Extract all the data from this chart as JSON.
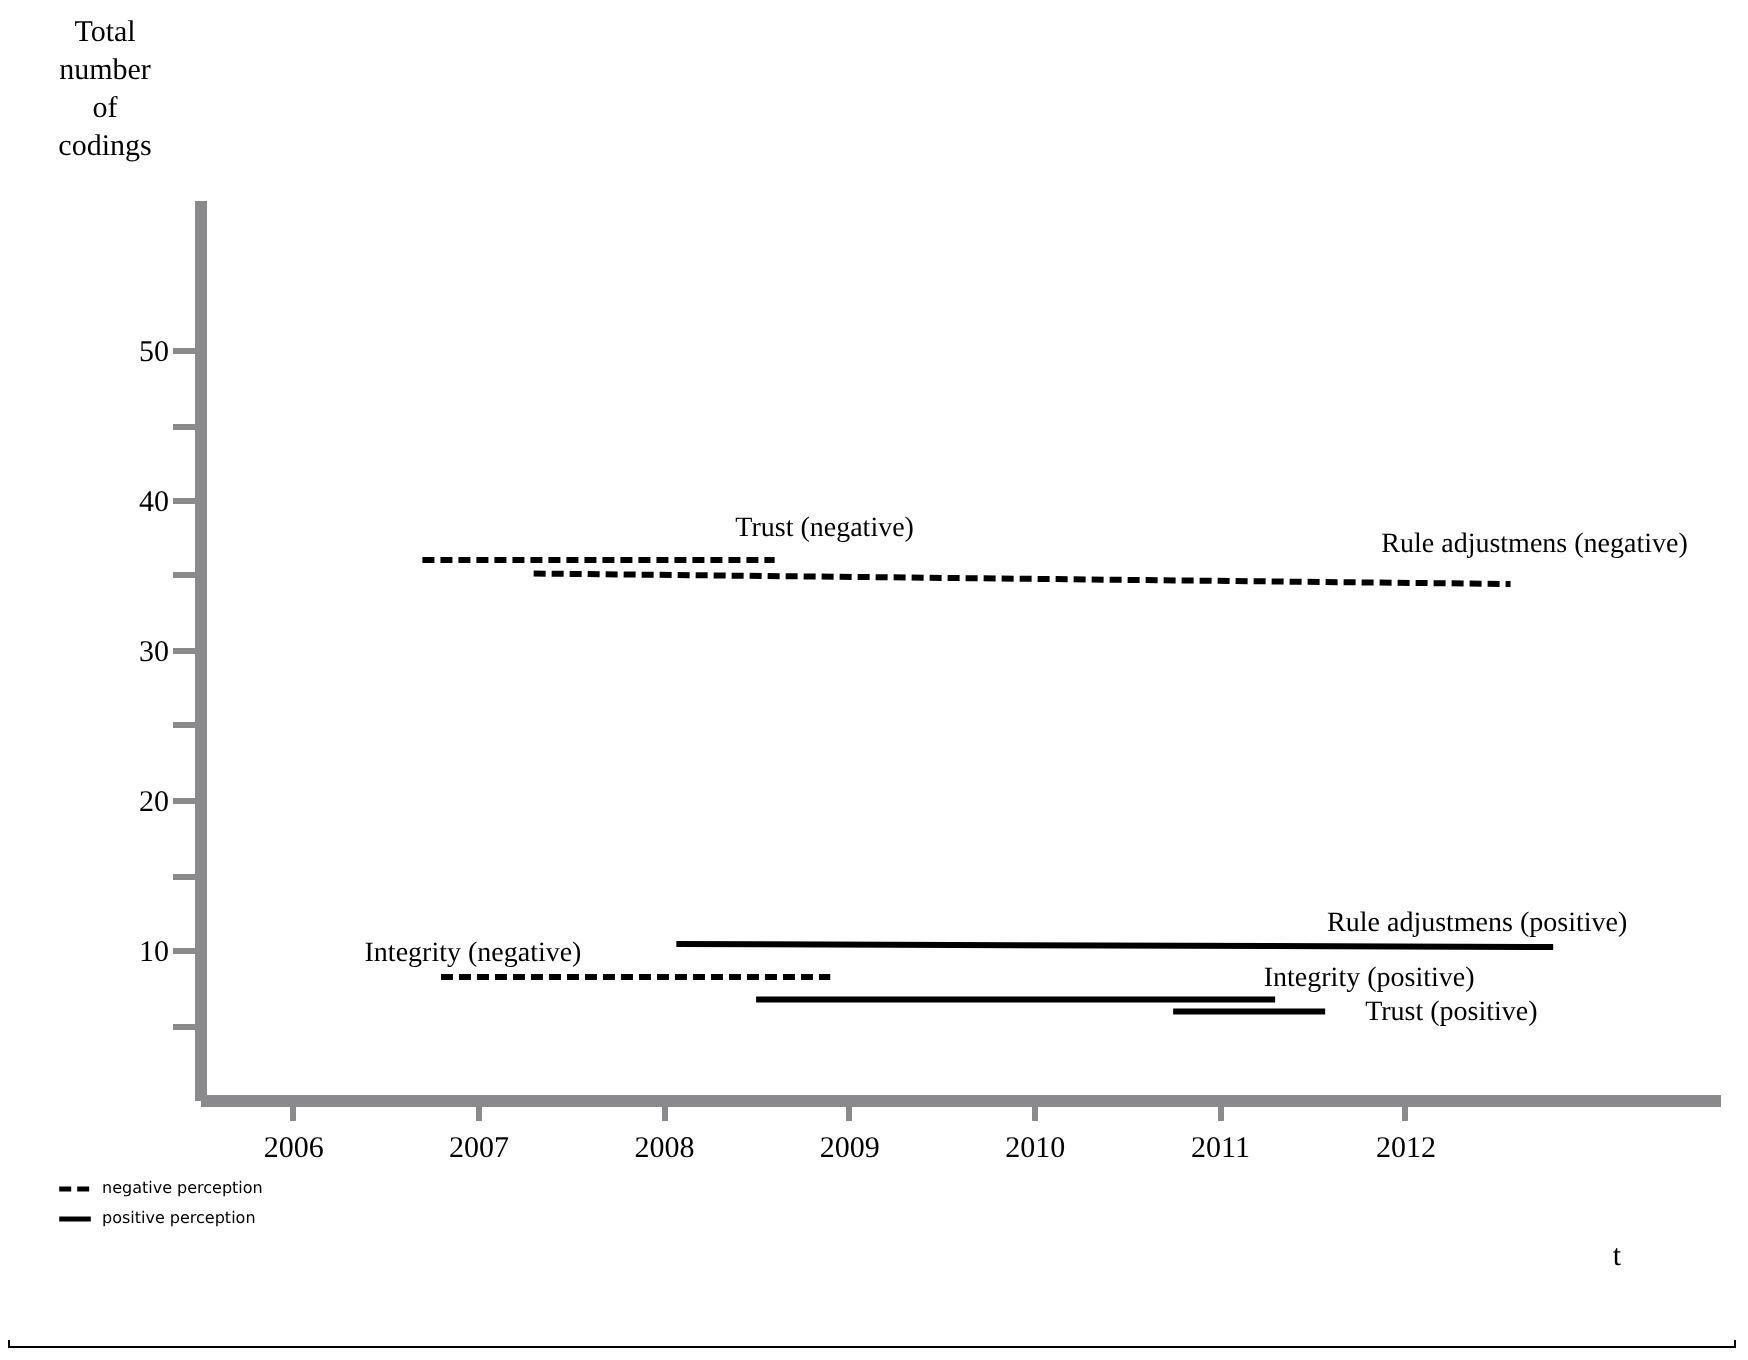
{
  "chart_data": {
    "type": "line",
    "ylabel": "Total number of codings",
    "xlabel": "t",
    "xlim": [
      2005.5,
      2013.7
    ],
    "xticks": [
      2006,
      2007,
      2008,
      2009,
      2010,
      2011,
      2012
    ],
    "ylim": [
      0,
      60
    ],
    "yticks": [
      {
        "value": 5,
        "label": null
      },
      10,
      {
        "value": 15,
        "label": null
      },
      20,
      {
        "value": 25,
        "label": null
      },
      30,
      {
        "value": 35,
        "label": null
      },
      40,
      {
        "value": 45,
        "label": null
      },
      50
    ],
    "grid": false,
    "legend": "bottom left",
    "marker": "none",
    "annotations": [
      "negative perception",
      "positive perception"
    ],
    "series": [
      {
        "name": "Trust (negative)",
        "color": "#000000",
        "line_style": "dashed",
        "x": [
          2006.7,
          2008.6
        ],
        "values": [
          36,
          36
        ]
      },
      {
        "name": "Rule adjustmens (negative)",
        "color": "#000000",
        "line_style": "dashed",
        "x": [
          2007.3,
          2012.57
        ],
        "values": [
          35.1,
          34.4
        ]
      },
      {
        "name": "Integrity (negative)",
        "color": "#000000",
        "line_style": "dashed",
        "x": [
          2006.8,
          2008.9
        ],
        "values": [
          8.2,
          8.2
        ]
      },
      {
        "name": "Rule adjustmens (positive)",
        "color": "#000000",
        "line_style": "solid",
        "x": [
          2008.07,
          2012.8
        ],
        "values": [
          10.4,
          10.2
        ]
      },
      {
        "name": "Integrity (positive)",
        "color": "#000000",
        "line_style": "solid",
        "x": [
          2008.5,
          2011.3
        ],
        "values": [
          6.7,
          6.7
        ]
      },
      {
        "name": "Trust (positive)",
        "color": "#000000",
        "line_style": "solid",
        "x": [
          2010.75,
          2011.57
        ],
        "values": [
          5.9,
          5.9
        ]
      }
    ]
  }
}
